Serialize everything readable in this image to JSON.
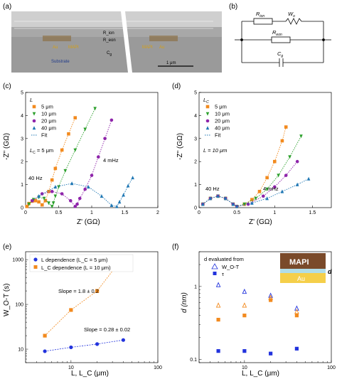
{
  "panels": {
    "a": {
      "letter": "(a)",
      "substrate_label": "Substrate",
      "au_label": "Au",
      "mapi_label": "MAPI",
      "rion_label": "R_ion",
      "reon_label": "R_eon",
      "cg_label": "C_g",
      "scale_bar_label": "1 μm",
      "cg_text": "C",
      "cg_sub": "g"
    },
    "b": {
      "letter": "(b)",
      "rion_main": "R",
      "rion_sub": "ion",
      "wo_main": "W",
      "wo_sub": "o",
      "reon_main": "R",
      "reon_sub": "eon",
      "cg_main": "C",
      "cg_sub": "g"
    },
    "c": {
      "letter": "(c)",
      "ylabel": "-Z'' (GΩ)",
      "xlabel": "Z' (GΩ)",
      "legend_title": "L",
      "condition_main": "L",
      "condition_sub": "C",
      "condition_rest": " = 5 μm",
      "annotation_hz": "40 Hz",
      "annotation_mhz": "4 mHz",
      "x_ticks": [
        "0",
        "0.5",
        "1",
        "1.5",
        "2"
      ],
      "y_ticks": [
        "0",
        "1",
        "2",
        "3",
        "4",
        "5"
      ],
      "legend": [
        "5 μm",
        "10 μm",
        "20 μm",
        "40 μm",
        "Fit"
      ]
    },
    "d": {
      "letter": "(d)",
      "ylabel": "-Z'' (GΩ)",
      "xlabel": "Z' (GΩ)",
      "legend_title_main": "L",
      "legend_title_sub": "C",
      "condition": "L = 10 μm",
      "annotation_hz": "40 Hz",
      "annotation_mhz": "4 mHz",
      "x_ticks": [
        "0",
        "0.5",
        "1",
        "1.5"
      ],
      "y_ticks": [
        "0",
        "1",
        "2",
        "3",
        "4",
        "5"
      ],
      "legend": [
        "5 μm",
        "10 μm",
        "20 μm",
        "40 μm",
        "Fit"
      ]
    },
    "e": {
      "letter": "(e)",
      "ylabel": "W_O-T (s)",
      "xlabel": "L, L_C (μm)",
      "legend_1": "L dependence (L_C = 5 μm)",
      "legend_2": "L_C dependence (L = 10 μm)",
      "slope_1": "Slope = 1.8 ± 0.2",
      "slope_2": "Slope = 0.28 ± 0.02",
      "x_ticks": [
        "10",
        "100"
      ],
      "y_ticks": [
        "10",
        "100",
        "1000"
      ]
    },
    "f": {
      "letter": "(f)",
      "ylabel": "d (nm)",
      "xlabel": "L, L_C (μm)",
      "legend_title": "d evaluated from",
      "legend_1": "W_O-T",
      "legend_2": "τ",
      "inset_mapi": "MAPI",
      "inset_au": "Au",
      "inset_d": "d",
      "x_ticks": [
        "10",
        "100"
      ],
      "y_ticks": [
        "0.1",
        "1"
      ]
    }
  },
  "colors": {
    "orange": "#f28a1e",
    "green": "#2ca02c",
    "purple": "#8e24aa",
    "blue": "#1f77b4",
    "e_blue": "#2233dd",
    "e_orange": "#f28a1e",
    "mapi": "#7a4a2a",
    "au": "#f5cf4a"
  },
  "chart_data": [
    {
      "id": "c",
      "type": "scatter",
      "xlabel": "Z' (GΩ)",
      "ylabel": "-Z'' (GΩ)",
      "xlim": [
        0,
        2
      ],
      "ylim": [
        0,
        5
      ],
      "series": [
        {
          "name": "5 μm",
          "color": "#f28a1e",
          "marker": "square",
          "x": [
            0.02,
            0.05,
            0.1,
            0.15,
            0.2,
            0.25,
            0.3,
            0.35,
            0.4,
            0.45,
            0.55,
            0.65,
            0.75
          ],
          "y": [
            0.05,
            0.18,
            0.28,
            0.3,
            0.25,
            0.12,
            0.3,
            0.7,
            1.2,
            1.7,
            2.5,
            3.2,
            3.9
          ]
        },
        {
          "name": "10 μm",
          "color": "#2ca02c",
          "marker": "triangle-down",
          "x": [
            0.05,
            0.12,
            0.2,
            0.28,
            0.35,
            0.4,
            0.42,
            0.45,
            0.5,
            0.6,
            0.75,
            0.9,
            1.05
          ],
          "y": [
            0.15,
            0.35,
            0.45,
            0.4,
            0.2,
            0.05,
            0.2,
            0.5,
            0.9,
            1.6,
            2.5,
            3.4,
            4.3
          ]
        },
        {
          "name": "20 μm",
          "color": "#8e24aa",
          "marker": "circle",
          "x": [
            0.1,
            0.25,
            0.4,
            0.55,
            0.68,
            0.75,
            0.78,
            0.82,
            0.9,
            1.0,
            1.1,
            1.2,
            1.3
          ],
          "y": [
            0.3,
            0.6,
            0.7,
            0.6,
            0.3,
            0.05,
            0.15,
            0.4,
            0.8,
            1.4,
            2.2,
            3.0,
            3.8
          ]
        },
        {
          "name": "40 μm",
          "color": "#1f77b4",
          "marker": "triangle-up",
          "x": [
            0.2,
            0.45,
            0.7,
            0.95,
            1.15,
            1.3,
            1.38,
            1.42,
            1.48,
            1.55,
            1.62
          ],
          "y": [
            0.5,
            0.9,
            1.05,
            0.9,
            0.5,
            0.1,
            0.05,
            0.25,
            0.55,
            0.95,
            1.3
          ]
        }
      ]
    },
    {
      "id": "d",
      "type": "scatter",
      "xlabel": "Z' (GΩ)",
      "ylabel": "-Z'' (GΩ)",
      "xlim": [
        0,
        1.75
      ],
      "ylim": [
        0,
        5
      ],
      "series": [
        {
          "name": "5 μm",
          "color": "#f28a1e",
          "marker": "square",
          "x": [
            0.05,
            0.15,
            0.25,
            0.35,
            0.45,
            0.5,
            0.6,
            0.7,
            0.8,
            0.9,
            1.0,
            1.1,
            1.15
          ],
          "y": [
            0.15,
            0.4,
            0.5,
            0.4,
            0.15,
            0.05,
            0.15,
            0.35,
            0.7,
            1.3,
            2.0,
            2.9,
            3.5
          ]
        },
        {
          "name": "10 μm",
          "color": "#2ca02c",
          "marker": "triangle-down",
          "x": [
            0.05,
            0.15,
            0.25,
            0.35,
            0.45,
            0.5,
            0.6,
            0.75,
            0.9,
            1.05,
            1.2,
            1.35
          ],
          "y": [
            0.15,
            0.4,
            0.5,
            0.4,
            0.15,
            0.05,
            0.15,
            0.4,
            0.8,
            1.4,
            2.2,
            3.1
          ]
        },
        {
          "name": "20 μm",
          "color": "#8e24aa",
          "marker": "circle",
          "x": [
            0.05,
            0.15,
            0.25,
            0.35,
            0.45,
            0.5,
            0.65,
            0.85,
            1.0,
            1.15,
            1.3
          ],
          "y": [
            0.15,
            0.4,
            0.5,
            0.4,
            0.15,
            0.05,
            0.15,
            0.5,
            0.9,
            1.4,
            2.0
          ]
        },
        {
          "name": "40 μm",
          "color": "#1f77b4",
          "marker": "triangle-up",
          "x": [
            0.05,
            0.15,
            0.25,
            0.35,
            0.45,
            0.5,
            0.7,
            0.9,
            1.1,
            1.3,
            1.45
          ],
          "y": [
            0.15,
            0.4,
            0.5,
            0.4,
            0.15,
            0.05,
            0.2,
            0.4,
            0.7,
            1.0,
            1.25
          ]
        }
      ]
    },
    {
      "id": "e",
      "type": "scatter",
      "xlabel": "L, L_C (μm)",
      "ylabel": "W_O-T (s)",
      "xscale": "log",
      "yscale": "log",
      "xlim": [
        3,
        100
      ],
      "ylim": [
        5,
        1500
      ],
      "series": [
        {
          "name": "L dependence (L_C = 5 μm)",
          "color": "#2233dd",
          "marker": "circle",
          "x": [
            5,
            10,
            20,
            40
          ],
          "y": [
            9,
            11,
            13,
            16
          ]
        },
        {
          "name": "L_C dependence (L = 10 μm)",
          "color": "#f28a1e",
          "marker": "square",
          "x": [
            5,
            10,
            20,
            40
          ],
          "y": [
            20,
            75,
            200,
            1150
          ]
        }
      ]
    },
    {
      "id": "f",
      "type": "scatter",
      "xlabel": "L, L_C (μm)",
      "ylabel": "d (nm)",
      "xscale": "log",
      "yscale": "log",
      "xlim": [
        3,
        100
      ],
      "ylim": [
        0.09,
        3
      ],
      "series": [
        {
          "name": "W_O-T (L)",
          "color": "#2233dd",
          "marker": "triangle-open",
          "x": [
            5,
            10,
            20,
            40
          ],
          "y": [
            1.05,
            0.85,
            0.75,
            0.5
          ]
        },
        {
          "name": "W_O-T (L_C)",
          "color": "#f28a1e",
          "marker": "triangle-open",
          "x": [
            5,
            10,
            20,
            40
          ],
          "y": [
            0.55,
            0.55,
            0.7,
            0.45
          ]
        },
        {
          "name": "τ (L)",
          "color": "#2233dd",
          "marker": "square",
          "x": [
            5,
            10,
            20,
            40
          ],
          "y": [
            0.13,
            0.13,
            0.12,
            0.14
          ]
        },
        {
          "name": "τ (L_C)",
          "color": "#f28a1e",
          "marker": "square",
          "x": [
            5,
            10,
            20,
            40
          ],
          "y": [
            0.35,
            0.4,
            0.65,
            0.4
          ]
        }
      ]
    }
  ]
}
